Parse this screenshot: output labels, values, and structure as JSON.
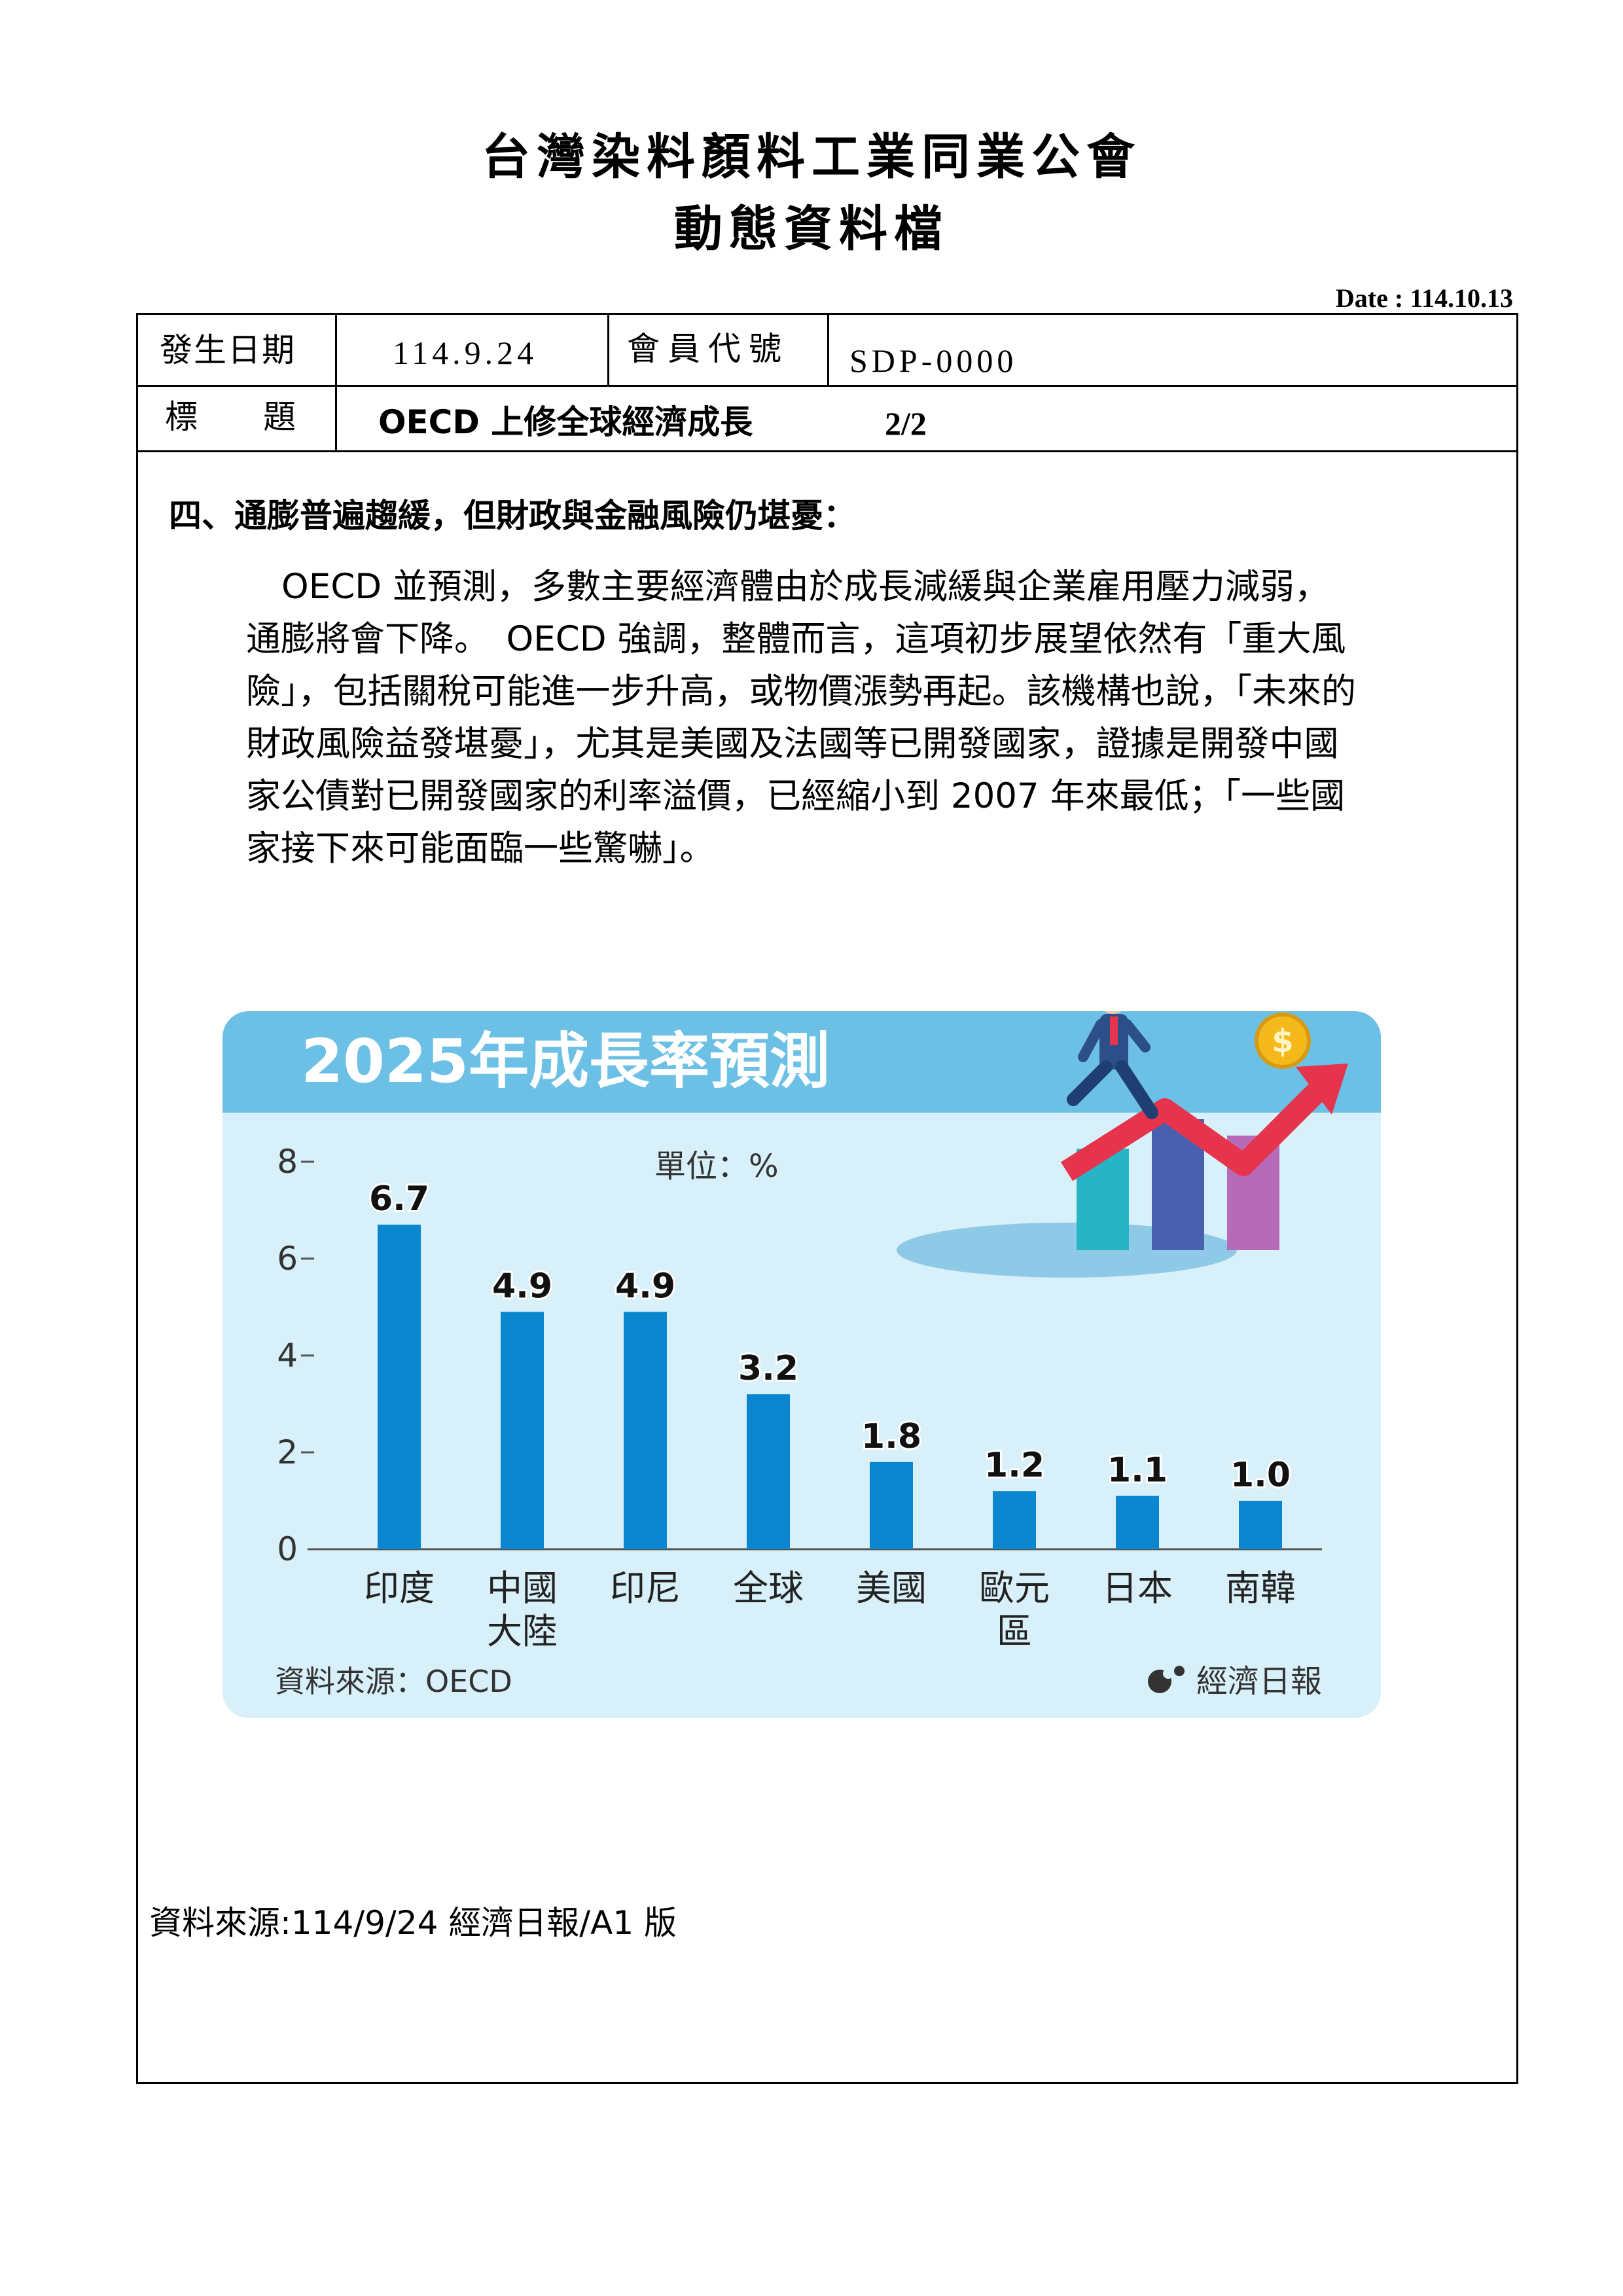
{
  "header": {
    "title_line1": "台灣染料顏料工業同業公會",
    "title_line2": "動態資料檔",
    "date": "Date : 114.10.13"
  },
  "info_table": {
    "date_label": "發生日期",
    "date_value": "114.9.24",
    "member_label": "會員代號",
    "member_value": "SDP-0000",
    "subject_label": "標　　題",
    "subject_value": "OECD  上修全球經濟成長",
    "page": "2/2"
  },
  "section": {
    "heading": "四、通膨普遍趨緩，但財政與金融風險仍堪憂：",
    "paragraph_lines": [
      "OECD 並預測，多數主要經濟體由於成長減緩與企業雇用壓力減弱，",
      "通膨將會下降。　OECD 強調，整體而言，這項初步展望依然有「重大風",
      "險」，包括關稅可能進一步升高，或物價漲勢再起。該機構也說，「未來的",
      "財政風險益發堪憂」，尤其是美國及法國等已開發國家，證據是開發中國",
      "家公債對已開發國家的利率溢價，已經縮小到 2007 年來最低；「一些國",
      "家接下來可能面臨一些驚嚇」。"
    ]
  },
  "chart_data": {
    "type": "bar",
    "title": "2025年成長率預測",
    "unit_note": "單位：%",
    "source": "資料來源：OECD",
    "publisher": "經濟日報",
    "categories": [
      [
        "印度"
      ],
      [
        "中國",
        "大陸"
      ],
      [
        "印尼"
      ],
      [
        "全球"
      ],
      [
        "美國"
      ],
      [
        "歐元",
        "區"
      ],
      [
        "日本"
      ],
      [
        "南韓"
      ]
    ],
    "values": [
      6.7,
      4.9,
      4.9,
      3.2,
      1.8,
      1.2,
      1.1,
      1.0
    ],
    "value_labels": [
      "6.7",
      "4.9",
      "4.9",
      "3.2",
      "1.8",
      "1.2",
      "1.1",
      "1.0"
    ],
    "yticks": [
      "0",
      "2",
      "4",
      "6",
      "8"
    ],
    "ylim": [
      0,
      8
    ],
    "bar_color": "#0a86cf",
    "header_color": "#6cc0e5",
    "background_color": "#d8f0f9"
  },
  "footer": {
    "source": "資料來源:114/9/24  經濟日報/A1 版"
  }
}
